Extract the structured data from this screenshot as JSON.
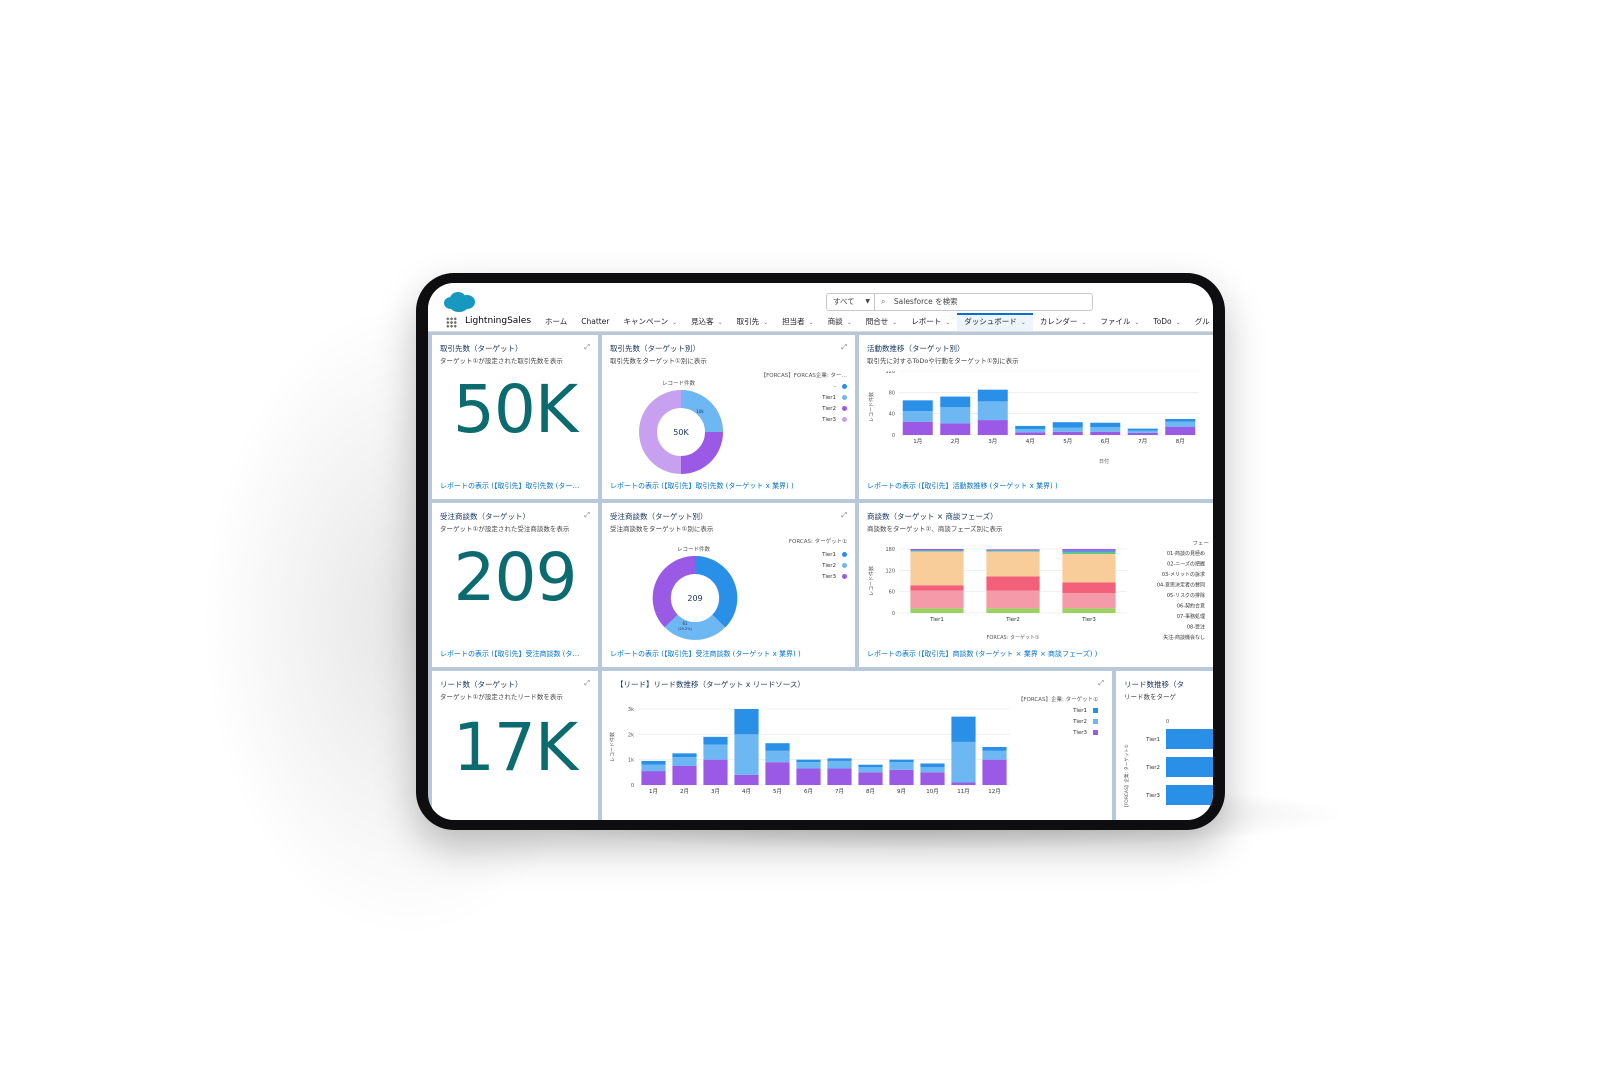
{
  "header": {
    "search_scope": "すべて",
    "search_placeholder": "Salesforce を検索",
    "app_name": "LightningSales"
  },
  "nav": {
    "items": [
      {
        "label": "ホーム",
        "dropdown": false,
        "active": false
      },
      {
        "label": "Chatter",
        "dropdown": false,
        "active": false
      },
      {
        "label": "キャンペーン",
        "dropdown": true,
        "active": false
      },
      {
        "label": "見込客",
        "dropdown": true,
        "active": false
      },
      {
        "label": "取引先",
        "dropdown": true,
        "active": false
      },
      {
        "label": "担当者",
        "dropdown": true,
        "active": false
      },
      {
        "label": "商談",
        "dropdown": true,
        "active": false
      },
      {
        "label": "問合せ",
        "dropdown": true,
        "active": false
      },
      {
        "label": "レポート",
        "dropdown": true,
        "active": false
      },
      {
        "label": "ダッシュボード",
        "dropdown": true,
        "active": true
      },
      {
        "label": "カレンダー",
        "dropdown": true,
        "active": false
      },
      {
        "label": "ファイル",
        "dropdown": true,
        "active": false
      },
      {
        "label": "ToDo",
        "dropdown": true,
        "active": false
      },
      {
        "label": "グル",
        "dropdown": false,
        "active": false
      }
    ]
  },
  "colors": {
    "tier1": "#2a8fe6",
    "tier2": "#6db7f2",
    "tier3": "#9b5ae6",
    "tier3_light": "#c7a1f0",
    "metric": "#0b6b6f",
    "link": "#0070d2"
  },
  "cards": {
    "accounts": {
      "title": "取引先数（ターゲット）",
      "subtitle": "ターゲット①が設定された取引先数を表示",
      "value": "50K",
      "link": "レポートの表示 (【取引先】取引先数 (ター…"
    },
    "accounts_by_target": {
      "title": "取引先数（ターゲット別）",
      "subtitle": "取引先数をターゲット①別に表示",
      "legend_title": "【FORCAS】FORCAS企業: ター…",
      "donut_label": "レコード件数",
      "center": "50K",
      "slice_small_label": "10k",
      "legend": [
        {
          "name": "-",
          "color": "#2a8fe6"
        },
        {
          "name": "Tier1",
          "color": "#6db7f2"
        },
        {
          "name": "Tier2",
          "color": "#9b5ae6"
        },
        {
          "name": "Tier3",
          "color": "#c7a1f0"
        }
      ],
      "link": "レポートの表示 (【取引先】取引先数 (ターゲット x 業界) )"
    },
    "activities": {
      "title": "活動数推移（ターゲット別）",
      "subtitle": "取引先に対するToDoや行動をターゲット①別に表示",
      "ylabel": "レコード件数",
      "xlabel": "日付",
      "link": "レポートの表示 (【取引先】活動数推移 (ターゲット x 業界) )"
    },
    "won": {
      "title": "受注商談数（ターゲット）",
      "subtitle": "ターゲット①が設定された受注商談数を表示",
      "value": "209",
      "link": "レポートの表示 (【取引先】受注商談数 (タ…"
    },
    "won_by_target": {
      "title": "受注商談数（ターゲット別）",
      "subtitle": "受注商談数をターゲット①別に表示",
      "legend_title": "FORCAS: ターゲット①",
      "donut_label": "レコード件数",
      "center": "209",
      "slice_label": "61",
      "slice_pct": "(29.2%)",
      "legend": [
        {
          "name": "Tier1",
          "color": "#2a8fe6"
        },
        {
          "name": "Tier2",
          "color": "#6db7f2"
        },
        {
          "name": "Tier3",
          "color": "#9b5ae6"
        }
      ],
      "link": "レポートの表示 (【取引先】受注商談数 (ターゲット x 業界) )"
    },
    "opps": {
      "title": "商談数（ターゲット × 商談フェーズ）",
      "subtitle": "商談数をターゲット①、商談フェーズ別に表示",
      "ylabel": "レコード件数",
      "xlabel": "FORCAS: ターゲット①",
      "legend_title": "フェー",
      "link": "レポートの表示 (【取引先】商談数 (ターゲット × 業界 × 商談フェーズ) )"
    },
    "leads": {
      "title": "リード数（ターゲット）",
      "subtitle": "ターゲット①が設定されたリード数を表示",
      "value": "17K"
    },
    "lead_trend": {
      "title": "【リード】リード数推移（ターゲット x リードソース）",
      "legend_title": "【FORCAS】企業: ターゲット①",
      "ylabel": "レコード件数"
    },
    "lead_by_target": {
      "title": "リード数推移（タ",
      "subtitle": "リード数をターゲ",
      "ylabel": "【FORCAS】企業: ターゲット①",
      "x0": "0"
    }
  },
  "chart_data": [
    {
      "type": "bar",
      "title": "活動数推移（ターゲット別）",
      "xlabel": "日付",
      "ylabel": "レコード件数",
      "ylim": [
        0,
        120
      ],
      "yticks": [
        "0",
        "40",
        "80",
        "120"
      ],
      "categories": [
        "1月",
        "2月",
        "3月",
        "4月",
        "5月",
        "6月",
        "7月",
        "8月"
      ],
      "series": [
        {
          "name": "Tier3",
          "color": "#9b5ae6",
          "values": [
            25,
            22,
            28,
            5,
            6,
            6,
            4,
            15
          ]
        },
        {
          "name": "Tier2",
          "color": "#6db7f2",
          "values": [
            20,
            30,
            35,
            6,
            8,
            9,
            4,
            10
          ]
        },
        {
          "name": "Tier1",
          "color": "#2a8fe6",
          "values": [
            20,
            20,
            22,
            6,
            10,
            8,
            4,
            5
          ]
        }
      ]
    },
    {
      "type": "bar",
      "title": "商談数（ターゲット × 商談フェーズ）",
      "xlabel": "FORCAS: ターゲット①",
      "ylabel": "レコード件数",
      "ylim": [
        0,
        180
      ],
      "yticks": [
        "0",
        "60",
        "120",
        "180"
      ],
      "categories": [
        "Tier1",
        "Tier2",
        "Tier3"
      ],
      "series": [
        {
          "name": "01-商談の見極め",
          "color": "#96d35f",
          "values": [
            13,
            13,
            13
          ]
        },
        {
          "name": "02-ニーズの把握",
          "color": "#f49aa8",
          "values": [
            50,
            50,
            43
          ]
        },
        {
          "name": "03-メリットの訴求",
          "color": "#f2607a",
          "values": [
            15,
            40,
            30
          ]
        },
        {
          "name": "04-意思決定者の賛同",
          "color": "#f9cd9a",
          "values": [
            95,
            70,
            80
          ]
        },
        {
          "name": "05-リスクの排除",
          "color": "#f7b27a",
          "values": [
            0,
            0,
            0
          ]
        },
        {
          "name": "06-契約合意",
          "color": "#5bc48e",
          "values": [
            2,
            2,
            6
          ]
        },
        {
          "name": "07-事務処理",
          "color": "#2a8fe6",
          "values": [
            2,
            2,
            3
          ]
        },
        {
          "name": "08-受注",
          "color": "#9b5ae6",
          "values": [
            3,
            2,
            5
          ]
        },
        {
          "name": "失注-商談機会なし",
          "color": "#c9c9c9",
          "values": [
            0,
            0,
            0
          ]
        }
      ]
    },
    {
      "type": "bar",
      "title": "【リード】リード数推移（ターゲット x リードソース）",
      "ylabel": "レコード件数",
      "ylim": [
        0,
        3000
      ],
      "yticks": [
        "0",
        "1k",
        "2k",
        "3k"
      ],
      "categories": [
        "1月",
        "2月",
        "3月",
        "4月",
        "5月",
        "6月",
        "7月",
        "8月",
        "9月",
        "10月",
        "11月",
        "12月"
      ],
      "series": [
        {
          "name": "Tier3",
          "color": "#9b5ae6",
          "values": [
            550,
            750,
            1000,
            400,
            900,
            650,
            650,
            500,
            600,
            500,
            100,
            1000
          ]
        },
        {
          "name": "Tier2",
          "color": "#6db7f2",
          "values": [
            250,
            350,
            600,
            1600,
            450,
            250,
            300,
            200,
            300,
            200,
            1600,
            350
          ]
        },
        {
          "name": "Tier1",
          "color": "#2a8fe6",
          "values": [
            150,
            150,
            300,
            1000,
            300,
            100,
            100,
            100,
            100,
            150,
            1000,
            150
          ]
        }
      ]
    },
    {
      "type": "bar",
      "title": "リード数推移（タ",
      "categories": [
        "Tier1",
        "Tier2",
        "Tier3"
      ],
      "values": [
        1,
        1,
        1
      ]
    }
  ]
}
